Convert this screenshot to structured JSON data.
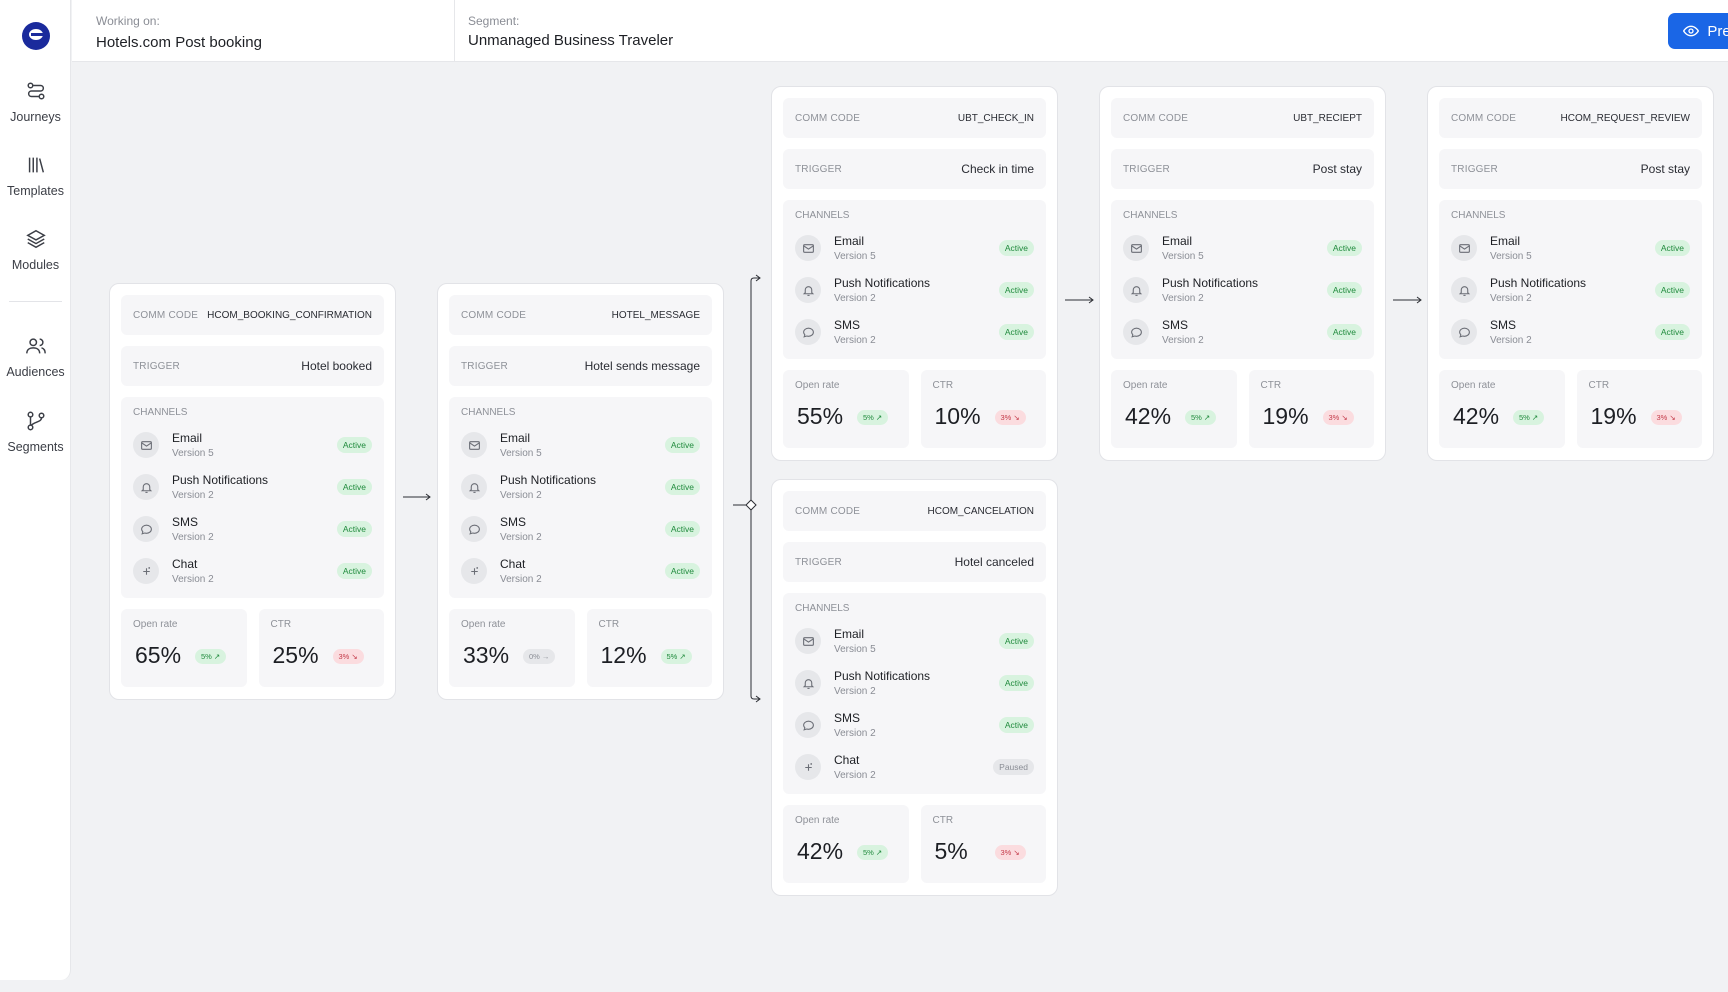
{
  "sidebar": {
    "items": [
      {
        "label": "Journeys"
      },
      {
        "label": "Templates"
      },
      {
        "label": "Modules"
      },
      {
        "label": "Audiences"
      },
      {
        "label": "Segments"
      }
    ]
  },
  "header": {
    "working_label": "Working on:",
    "working_value": "Hotels.com Post booking",
    "segment_label": "Segment:",
    "segment_value": "Unmanaged Business Traveler",
    "preview_label": "Preview"
  },
  "labels": {
    "comm_code": "COMM CODE",
    "trigger": "TRIGGER",
    "channels": "CHANNELS",
    "open_rate": "Open rate",
    "ctr": "CTR"
  },
  "cards": [
    {
      "comm_code": "HCOM_BOOKING_CONFIRMATION",
      "trigger": "Hotel booked",
      "channels": [
        {
          "name": "Email",
          "version": "Version 5",
          "status": "Active",
          "icon": "mail-icon"
        },
        {
          "name": "Push Notifications",
          "version": "Version 2",
          "status": "Active",
          "icon": "bell-icon"
        },
        {
          "name": "SMS",
          "version": "Version 2",
          "status": "Active",
          "icon": "chat-bubble-icon"
        },
        {
          "name": "Chat",
          "version": "Version 2",
          "status": "Active",
          "icon": "sparkle-icon"
        }
      ],
      "open_rate": {
        "value": "65%",
        "change": "5%",
        "trend": "up"
      },
      "ctr": {
        "value": "25%",
        "change": "3%",
        "trend": "down"
      }
    },
    {
      "comm_code": "HOTEL_MESSAGE",
      "trigger": "Hotel sends message",
      "channels": [
        {
          "name": "Email",
          "version": "Version 5",
          "status": "Active",
          "icon": "mail-icon"
        },
        {
          "name": "Push Notifications",
          "version": "Version 2",
          "status": "Active",
          "icon": "bell-icon"
        },
        {
          "name": "SMS",
          "version": "Version 2",
          "status": "Active",
          "icon": "chat-bubble-icon"
        },
        {
          "name": "Chat",
          "version": "Version 2",
          "status": "Active",
          "icon": "sparkle-icon"
        }
      ],
      "open_rate": {
        "value": "33%",
        "change": "0%",
        "trend": "flat"
      },
      "ctr": {
        "value": "12%",
        "change": "5%",
        "trend": "up"
      }
    },
    {
      "comm_code": "UBT_CHECK_IN",
      "trigger": "Check in time",
      "channels": [
        {
          "name": "Email",
          "version": "Version 5",
          "status": "Active",
          "icon": "mail-icon"
        },
        {
          "name": "Push Notifications",
          "version": "Version 2",
          "status": "Active",
          "icon": "bell-icon"
        },
        {
          "name": "SMS",
          "version": "Version 2",
          "status": "Active",
          "icon": "chat-bubble-icon"
        }
      ],
      "open_rate": {
        "value": "55%",
        "change": "5%",
        "trend": "up"
      },
      "ctr": {
        "value": "10%",
        "change": "3%",
        "trend": "down"
      }
    },
    {
      "comm_code": "HCOM_CANCELATION",
      "trigger": "Hotel canceled",
      "channels": [
        {
          "name": "Email",
          "version": "Version 5",
          "status": "Active",
          "icon": "mail-icon"
        },
        {
          "name": "Push Notifications",
          "version": "Version 2",
          "status": "Active",
          "icon": "bell-icon"
        },
        {
          "name": "SMS",
          "version": "Version 2",
          "status": "Active",
          "icon": "chat-bubble-icon"
        },
        {
          "name": "Chat",
          "version": "Version 2",
          "status": "Paused",
          "icon": "sparkle-icon"
        }
      ],
      "open_rate": {
        "value": "42%",
        "change": "5%",
        "trend": "up"
      },
      "ctr": {
        "value": "5%",
        "change": "3%",
        "trend": "down"
      }
    },
    {
      "comm_code": "UBT_RECIEPT",
      "trigger": "Post stay",
      "channels": [
        {
          "name": "Email",
          "version": "Version 5",
          "status": "Active",
          "icon": "mail-icon"
        },
        {
          "name": "Push Notifications",
          "version": "Version 2",
          "status": "Active",
          "icon": "bell-icon"
        },
        {
          "name": "SMS",
          "version": "Version 2",
          "status": "Active",
          "icon": "chat-bubble-icon"
        }
      ],
      "open_rate": {
        "value": "42%",
        "change": "5%",
        "trend": "up"
      },
      "ctr": {
        "value": "19%",
        "change": "3%",
        "trend": "down"
      }
    },
    {
      "comm_code": "HCOM_REQUEST_REVIEW",
      "trigger": "Post stay",
      "channels": [
        {
          "name": "Email",
          "version": "Version 5",
          "status": "Active",
          "icon": "mail-icon"
        },
        {
          "name": "Push Notifications",
          "version": "Version 2",
          "status": "Active",
          "icon": "bell-icon"
        },
        {
          "name": "SMS",
          "version": "Version 2",
          "status": "Active",
          "icon": "chat-bubble-icon"
        }
      ],
      "open_rate": {
        "value": "42%",
        "change": "5%",
        "trend": "up"
      },
      "ctr": {
        "value": "19%",
        "change": "3%",
        "trend": "down"
      }
    }
  ]
}
